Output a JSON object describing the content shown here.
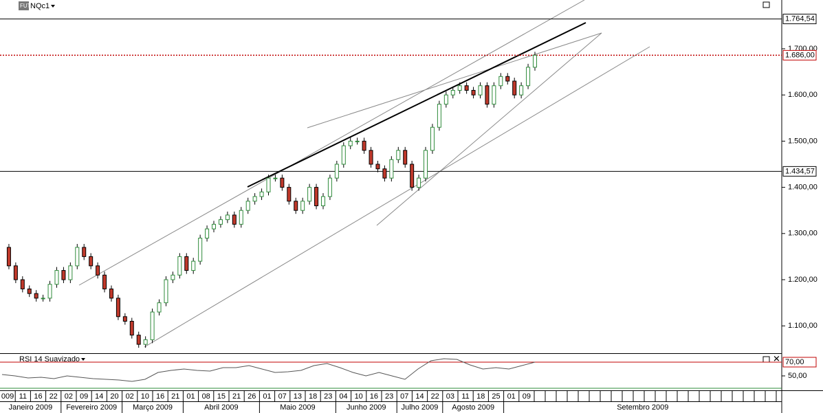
{
  "header": {
    "logo": "FUT",
    "symbol": "NQc1"
  },
  "chart_data": [
    {
      "type": "candlestick",
      "values": [
        1270,
        1230,
        1200,
        1180,
        1170,
        1160,
        1160,
        1190,
        1220,
        1200,
        1230,
        1270,
        1250,
        1230,
        1210,
        1180,
        1160,
        1120,
        1110,
        1080,
        1060,
        1070,
        1130,
        1150,
        1200,
        1210,
        1250,
        1220,
        1240,
        1290,
        1310,
        1320,
        1330,
        1340,
        1320,
        1350,
        1370,
        1380,
        1390,
        1420,
        1420,
        1400,
        1370,
        1350,
        1370,
        1400,
        1360,
        1380,
        1420,
        1450,
        1490,
        1500,
        1500,
        1480,
        1450,
        1440,
        1420,
        1460,
        1480,
        1450,
        1400,
        1420,
        1480,
        1530,
        1580,
        1600,
        1610,
        1620,
        1610,
        1600,
        1620,
        1580,
        1620,
        1640,
        1630,
        1600,
        1620,
        1660,
        1686
      ],
      "up_color": "#2e8b3a",
      "down_color": "#c0392b",
      "ylim": [
        1040.8,
        1805.6
      ],
      "yticks": [
        {
          "value": 1100,
          "label": "1.100,00"
        },
        {
          "value": 1200,
          "label": "1.200,00"
        },
        {
          "value": 1300,
          "label": "1.300,00"
        },
        {
          "value": 1400,
          "label": "1.400,00"
        },
        {
          "value": 1500,
          "label": "1.500,00"
        },
        {
          "value": 1600,
          "label": "1.600,00"
        },
        {
          "value": 1700,
          "label": "1.700,00"
        }
      ],
      "levels": [
        {
          "value": 1764.54,
          "label": "1.764,54",
          "color": "#000000",
          "text_color": "#c0392b",
          "dashed": false
        },
        {
          "value": 1686,
          "label": "1.686,00",
          "color": "#c00000",
          "text_color": "#000000",
          "dashed": true
        },
        {
          "value": 1434.57,
          "label": "1.434,57",
          "color": "#000000",
          "text_color": "#c0392b",
          "dashed": false
        }
      ]
    },
    {
      "type": "line",
      "title": "RSI 14 Suavizado",
      "color": "#555555",
      "values": [
        52,
        50,
        47,
        48,
        46,
        50,
        48,
        46,
        45,
        44,
        42,
        45,
        55,
        58,
        60,
        58,
        57,
        62,
        62,
        65,
        60,
        55,
        56,
        58,
        65,
        68,
        62,
        55,
        50,
        55,
        50,
        45,
        60,
        72,
        75,
        74,
        66,
        60,
        62,
        60,
        65,
        70
      ],
      "ylim": [
        29,
        82
      ],
      "yticks": [
        {
          "value": 50,
          "label": "50,00"
        }
      ],
      "levels": [
        {
          "value": 70,
          "label": "70,00",
          "color": "#c00000",
          "text_color": "#c0392b",
          "dashed": false
        }
      ]
    }
  ],
  "x_axis": {
    "days": [
      "009",
      "11",
      "16",
      "22",
      "02",
      "09",
      "14",
      "20",
      "02",
      "10",
      "16",
      "21",
      "01",
      "08",
      "15",
      "21",
      "26",
      "01",
      "07",
      "13",
      "18",
      "23",
      "04",
      "10",
      "16",
      "23",
      "07",
      "14",
      "22",
      "03",
      "11",
      "18",
      "25",
      "01",
      "09"
    ],
    "months": [
      {
        "label": "Janeiro 2009",
        "days": 4
      },
      {
        "label": "Fevereiro 2009",
        "days": 4
      },
      {
        "label": "Março 2009",
        "days": 4
      },
      {
        "label": "Abril 2009",
        "days": 5
      },
      {
        "label": "Maio 2009",
        "days": 5
      },
      {
        "label": "Junho 2009",
        "days": 4
      },
      {
        "label": "Julho 2009",
        "days": 3
      },
      {
        "label": "Agosto 2009",
        "days": 4
      },
      {
        "label": "Setembro 2009",
        "days": 2
      }
    ]
  }
}
